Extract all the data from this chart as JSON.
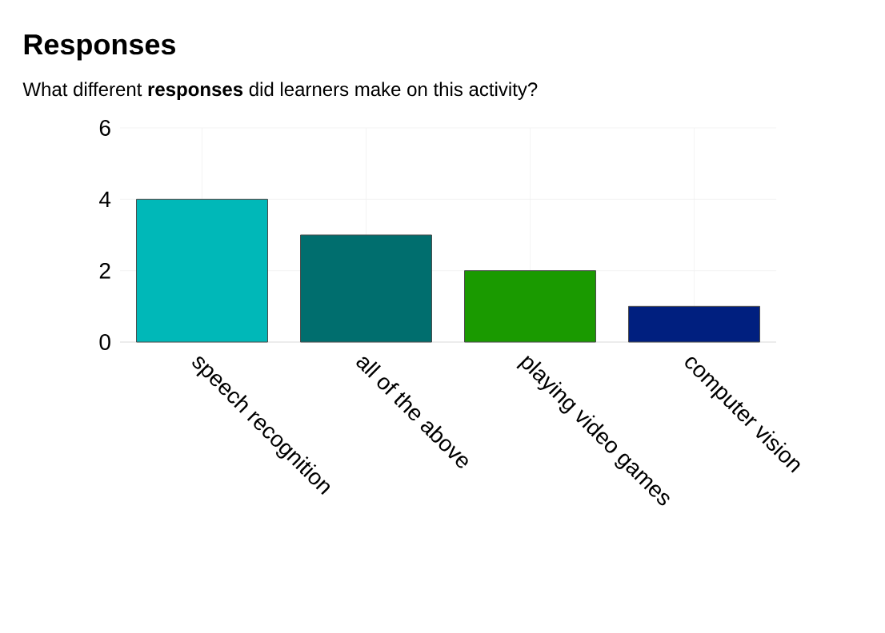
{
  "chart_data": {
    "type": "bar",
    "title": "Responses",
    "subtitle": "What different **responses** did learners make on this activity?",
    "categories": [
      "speech recognition",
      "all of the above",
      "playing video games",
      "computer vision"
    ],
    "values": [
      4,
      3,
      2,
      1
    ],
    "colors": [
      "#00b8b8",
      "#006e6e",
      "#1a9a00",
      "#001f7f"
    ],
    "ylim": [
      0,
      6
    ],
    "yticks": [
      0,
      2,
      4,
      6
    ],
    "grid": true
  }
}
